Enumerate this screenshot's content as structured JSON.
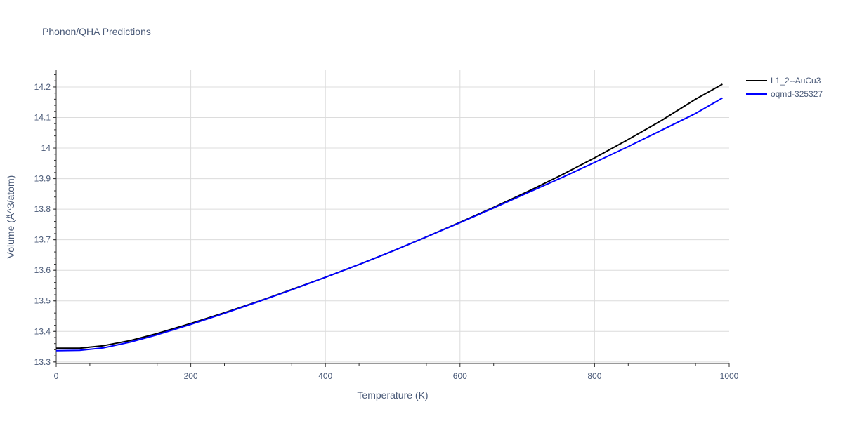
{
  "chart_data": {
    "type": "line",
    "title": "Phonon/QHA Predictions",
    "xlabel": "Temperature (K)",
    "ylabel": "Volume (Å^3/atom)",
    "xlim": [
      0,
      1000
    ],
    "ylim": [
      13.295,
      14.255
    ],
    "xticks": [
      0,
      200,
      400,
      600,
      800,
      1000
    ],
    "xtick_labels": [
      "0",
      "200",
      "400",
      "600",
      "800",
      "1000"
    ],
    "yticks": [
      13.3,
      13.4,
      13.5,
      13.6,
      13.7,
      13.8,
      13.9,
      14.0,
      14.1,
      14.2
    ],
    "ytick_labels": [
      "13.3",
      "13.4",
      "13.5",
      "13.6",
      "13.7",
      "13.8",
      "13.9",
      "14",
      "14.1",
      "14.2"
    ],
    "grid": true,
    "legend": "right",
    "series": [
      {
        "name": "L1_2--AuCu3",
        "color": "#000000",
        "x": [
          0,
          35,
          70,
          110,
          150,
          200,
          250,
          300,
          350,
          400,
          450,
          500,
          550,
          600,
          650,
          700,
          750,
          800,
          850,
          900,
          950,
          990
        ],
        "y": [
          13.345,
          13.345,
          13.353,
          13.37,
          13.393,
          13.426,
          13.461,
          13.498,
          13.537,
          13.577,
          13.619,
          13.663,
          13.709,
          13.757,
          13.806,
          13.857,
          13.911,
          13.968,
          14.028,
          14.091,
          14.16,
          14.209
        ]
      },
      {
        "name": "oqmd-325327",
        "color": "#0000ff",
        "x": [
          0,
          35,
          70,
          110,
          150,
          200,
          250,
          300,
          350,
          400,
          450,
          500,
          550,
          600,
          650,
          700,
          750,
          800,
          850,
          900,
          950,
          990
        ],
        "y": [
          13.337,
          13.338,
          13.346,
          13.365,
          13.389,
          13.423,
          13.459,
          13.497,
          13.536,
          13.577,
          13.619,
          13.663,
          13.709,
          13.756,
          13.804,
          13.853,
          13.902,
          13.953,
          14.005,
          14.059,
          14.113,
          14.164
        ]
      }
    ]
  }
}
